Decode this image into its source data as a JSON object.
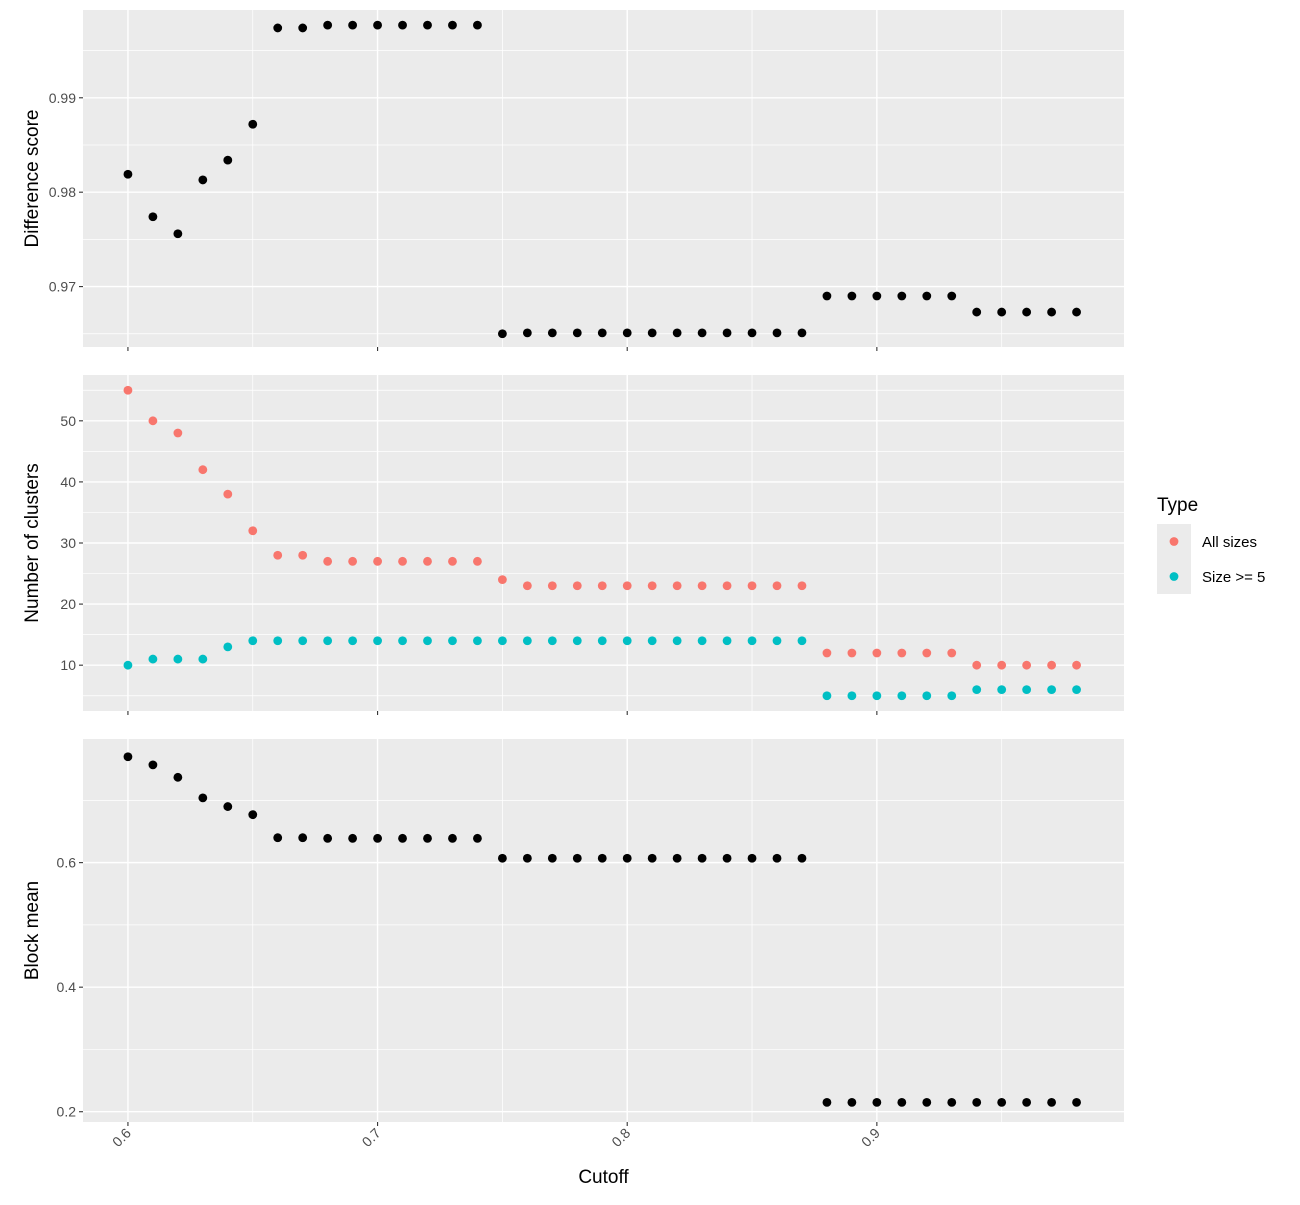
{
  "chart_data": {
    "type": "scatter",
    "x_label": "Cutoff",
    "x_range": [
      0.582,
      0.999
    ],
    "x_ticks": [
      0.6,
      0.7,
      0.8,
      0.9
    ],
    "x_tick_labels": [
      "0.6",
      "0.7",
      "0.8",
      "0.9"
    ],
    "x": [
      0.6,
      0.61,
      0.62,
      0.63,
      0.64,
      0.65,
      0.66,
      0.67,
      0.68,
      0.69,
      0.7,
      0.71,
      0.72,
      0.73,
      0.74,
      0.75,
      0.76,
      0.77,
      0.78,
      0.79,
      0.8,
      0.81,
      0.82,
      0.83,
      0.84,
      0.85,
      0.86,
      0.87,
      0.88,
      0.89,
      0.9,
      0.91,
      0.92,
      0.93,
      0.94,
      0.95,
      0.96,
      0.97,
      0.98
    ],
    "background": "#ebebeb",
    "grid": true,
    "panels": [
      {
        "ylabel": "Difference score",
        "ylim": [
          0.9636,
          0.9993
        ],
        "y_major": [
          0.97,
          0.98,
          0.99
        ],
        "y_tick_labels": [
          "0.97",
          "0.98",
          "0.99"
        ],
        "series": [
          {
            "color": "#000000",
            "values": [
              0.9819,
              0.9774,
              0.9756,
              0.9813,
              0.9834,
              0.9872,
              0.9974,
              0.9974,
              0.9977,
              0.9977,
              0.9977,
              0.9977,
              0.9977,
              0.9977,
              0.9977,
              0.965,
              0.9651,
              0.9651,
              0.9651,
              0.9651,
              0.9651,
              0.9651,
              0.9651,
              0.9651,
              0.9651,
              0.9651,
              0.9651,
              0.9651,
              0.969,
              0.969,
              0.969,
              0.969,
              0.969,
              0.969,
              0.9673,
              0.9673,
              0.9673,
              0.9673,
              0.9673
            ]
          }
        ]
      },
      {
        "ylabel": "Number of clusters",
        "ylim": [
          2.5,
          57.5
        ],
        "y_major": [
          10,
          20,
          30,
          40,
          50
        ],
        "y_tick_labels": [
          "10",
          "20",
          "30",
          "40",
          "50"
        ],
        "series": [
          {
            "name": "All sizes",
            "color": "#f8766d",
            "values": [
              55,
              50,
              48,
              42,
              38,
              32,
              28,
              28,
              27,
              27,
              27,
              27,
              27,
              27,
              27,
              24,
              23,
              23,
              23,
              23,
              23,
              23,
              23,
              23,
              23,
              23,
              23,
              23,
              12,
              12,
              12,
              12,
              12,
              12,
              10,
              10,
              10,
              10,
              10
            ]
          },
          {
            "name": "Size >= 5",
            "color": "#00bfc4",
            "values": [
              10,
              11,
              11,
              11,
              13,
              14,
              14,
              14,
              14,
              14,
              14,
              14,
              14,
              14,
              14,
              14,
              14,
              14,
              14,
              14,
              14,
              14,
              14,
              14,
              14,
              14,
              14,
              14,
              5,
              5,
              5,
              5,
              5,
              5,
              6,
              6,
              6,
              6,
              6
            ]
          }
        ]
      },
      {
        "ylabel": "Block mean",
        "ylim": [
          0.1835,
          0.7985
        ],
        "y_major": [
          0.2,
          0.4,
          0.6
        ],
        "y_tick_labels": [
          "0.2",
          "0.4",
          "0.6"
        ],
        "series": [
          {
            "color": "#000000",
            "values": [
              0.77,
              0.757,
              0.737,
              0.704,
              0.69,
              0.677,
              0.64,
              0.64,
              0.639,
              0.639,
              0.639,
              0.639,
              0.639,
              0.639,
              0.639,
              0.607,
              0.607,
              0.607,
              0.607,
              0.607,
              0.607,
              0.607,
              0.607,
              0.607,
              0.607,
              0.607,
              0.607,
              0.607,
              0.215,
              0.215,
              0.215,
              0.215,
              0.215,
              0.215,
              0.215,
              0.215,
              0.215,
              0.215,
              0.215
            ]
          }
        ]
      }
    ],
    "legend": {
      "title": "Type",
      "placement": "right",
      "items": [
        {
          "label": "All sizes",
          "color": "#f8766d"
        },
        {
          "label": "Size >= 5",
          "color": "#00bfc4"
        }
      ]
    }
  }
}
